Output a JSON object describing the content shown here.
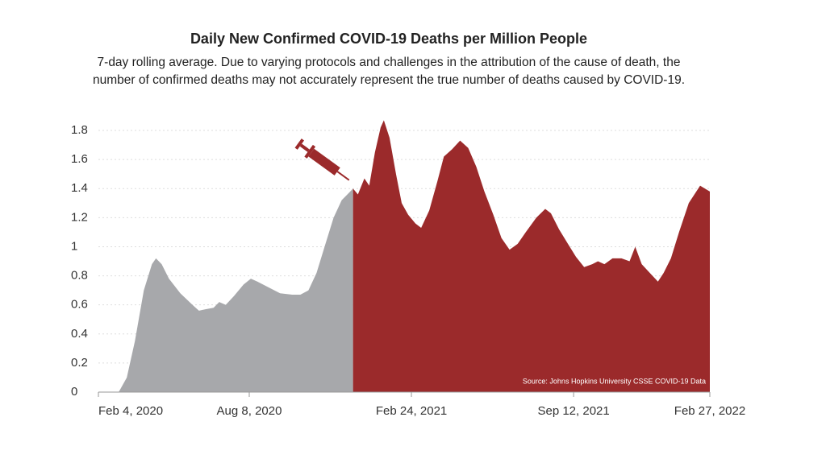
{
  "chart_data": {
    "type": "area",
    "title": "Daily New Confirmed COVID-19 Deaths per Million People",
    "subtitle": [
      "7-day rolling average. Due to varying protocols and challenges in the attribution of the cause of death, the",
      "number of confirmed deaths may not accurately represent the true number of deaths caused by COVID-19."
    ],
    "annotation": "Source: Johns Hopkins University CSSE COVID-19 Data",
    "xlim": [
      "2020-02-04",
      "2022-02-27"
    ],
    "xticks": [
      {
        "value": "2020-02-04",
        "label": "Feb 4, 2020"
      },
      {
        "value": "2020-08-08",
        "label": "Aug 8, 2020"
      },
      {
        "value": "2021-02-24",
        "label": "Feb 24, 2021"
      },
      {
        "value": "2021-09-12",
        "label": "Sep 12, 2021"
      },
      {
        "value": "2022-02-27",
        "label": "Feb 27, 2022"
      }
    ],
    "ylim": [
      0,
      1.85
    ],
    "yticks": [
      0,
      0.2,
      0.4,
      0.6,
      0.8,
      1,
      1.2,
      1.4,
      1.6,
      1.8
    ],
    "grid": true,
    "series": [
      {
        "color": "#a7a8ab",
        "x": [
          "2020-02-04",
          "2020-02-29",
          "2020-03-10",
          "2020-03-20",
          "2020-03-31",
          "2020-04-10",
          "2020-04-15",
          "2020-04-22",
          "2020-05-01",
          "2020-05-15",
          "2020-05-30",
          "2020-06-07",
          "2020-06-15",
          "2020-06-25",
          "2020-07-02",
          "2020-07-10",
          "2020-07-20",
          "2020-08-01",
          "2020-08-10",
          "2020-08-18",
          "2020-09-01",
          "2020-09-15",
          "2020-09-30",
          "2020-10-10",
          "2020-10-20",
          "2020-10-30",
          "2020-11-10",
          "2020-11-20",
          "2020-11-30",
          "2020-12-07",
          "2020-12-14"
        ],
        "values": [
          0,
          0,
          0.1,
          0.35,
          0.7,
          0.88,
          0.92,
          0.88,
          0.78,
          0.68,
          0.6,
          0.56,
          0.57,
          0.58,
          0.62,
          0.6,
          0.66,
          0.74,
          0.78,
          0.76,
          0.72,
          0.68,
          0.67,
          0.67,
          0.7,
          0.82,
          1.02,
          1.2,
          1.32,
          1.36,
          1.4
        ]
      },
      {
        "color": "#9b2a2b",
        "x": [
          "2020-12-14",
          "2020-12-20",
          "2020-12-28",
          "2021-01-03",
          "2021-01-10",
          "2021-01-17",
          "2021-01-21",
          "2021-01-28",
          "2021-02-05",
          "2021-02-12",
          "2021-02-20",
          "2021-03-01",
          "2021-03-08",
          "2021-03-18",
          "2021-03-28",
          "2021-04-05",
          "2021-04-15",
          "2021-04-25",
          "2021-05-05",
          "2021-05-15",
          "2021-05-25",
          "2021-06-05",
          "2021-06-15",
          "2021-06-25",
          "2021-07-05",
          "2021-07-15",
          "2021-07-28",
          "2021-08-08",
          "2021-08-15",
          "2021-08-25",
          "2021-09-05",
          "2021-09-15",
          "2021-09-25",
          "2021-10-05",
          "2021-10-12",
          "2021-10-20",
          "2021-10-30",
          "2021-11-10",
          "2021-11-20",
          "2021-11-27",
          "2021-12-05",
          "2021-12-15",
          "2021-12-25",
          "2022-01-01",
          "2022-01-10",
          "2022-01-20",
          "2022-02-01",
          "2022-02-15",
          "2022-02-27"
        ],
        "values": [
          1.4,
          1.36,
          1.47,
          1.42,
          1.65,
          1.82,
          1.87,
          1.75,
          1.5,
          1.3,
          1.22,
          1.16,
          1.13,
          1.25,
          1.45,
          1.62,
          1.67,
          1.73,
          1.68,
          1.55,
          1.38,
          1.22,
          1.06,
          0.98,
          1.02,
          1.1,
          1.2,
          1.26,
          1.23,
          1.12,
          1.02,
          0.93,
          0.86,
          0.88,
          0.9,
          0.88,
          0.92,
          0.92,
          0.9,
          1.0,
          0.88,
          0.82,
          0.76,
          0.82,
          0.92,
          1.1,
          1.3,
          1.42,
          1.38
        ]
      }
    ]
  }
}
